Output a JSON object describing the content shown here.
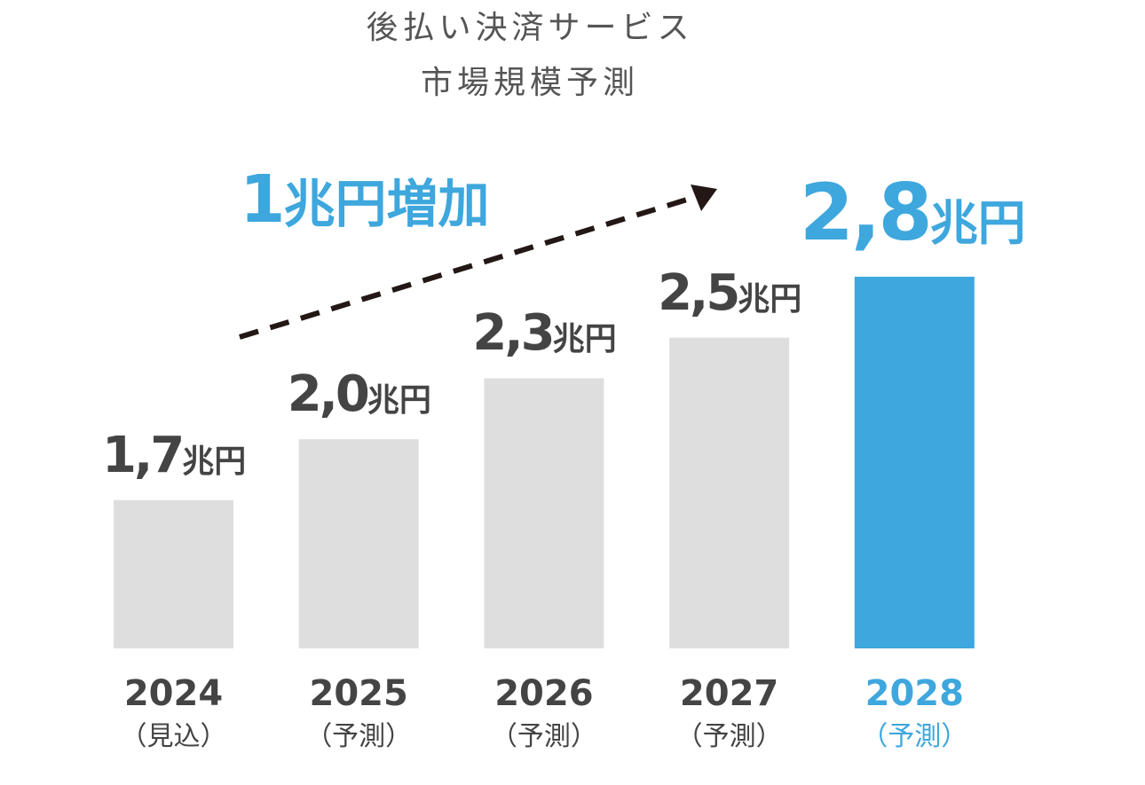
{
  "chart_data": {
    "type": "bar",
    "title": [
      "後払い決済サービス",
      "市場規模予測"
    ],
    "categories": [
      "2024",
      "2025",
      "2026",
      "2027",
      "2028"
    ],
    "sublabels": [
      "（見込）",
      "（予測）",
      "（予測）",
      "（予測）",
      "（予測）"
    ],
    "values": [
      1.7,
      2.0,
      2.3,
      2.5,
      2.8
    ],
    "value_labels": [
      "1,7",
      "2,0",
      "2,3",
      "2,5",
      "2,8"
    ],
    "unit": "兆円",
    "highlight_index": 4,
    "ylim": [
      0.97,
      2.8
    ],
    "grid": false,
    "annotation": {
      "number": "1",
      "text": "兆円増加",
      "arrow": "dashed, rising from 2024 toward 2028"
    },
    "colors": {
      "bar": "#dedede",
      "highlight": "#3ea7dd",
      "text": "#444444",
      "arrow": "#231815"
    }
  }
}
